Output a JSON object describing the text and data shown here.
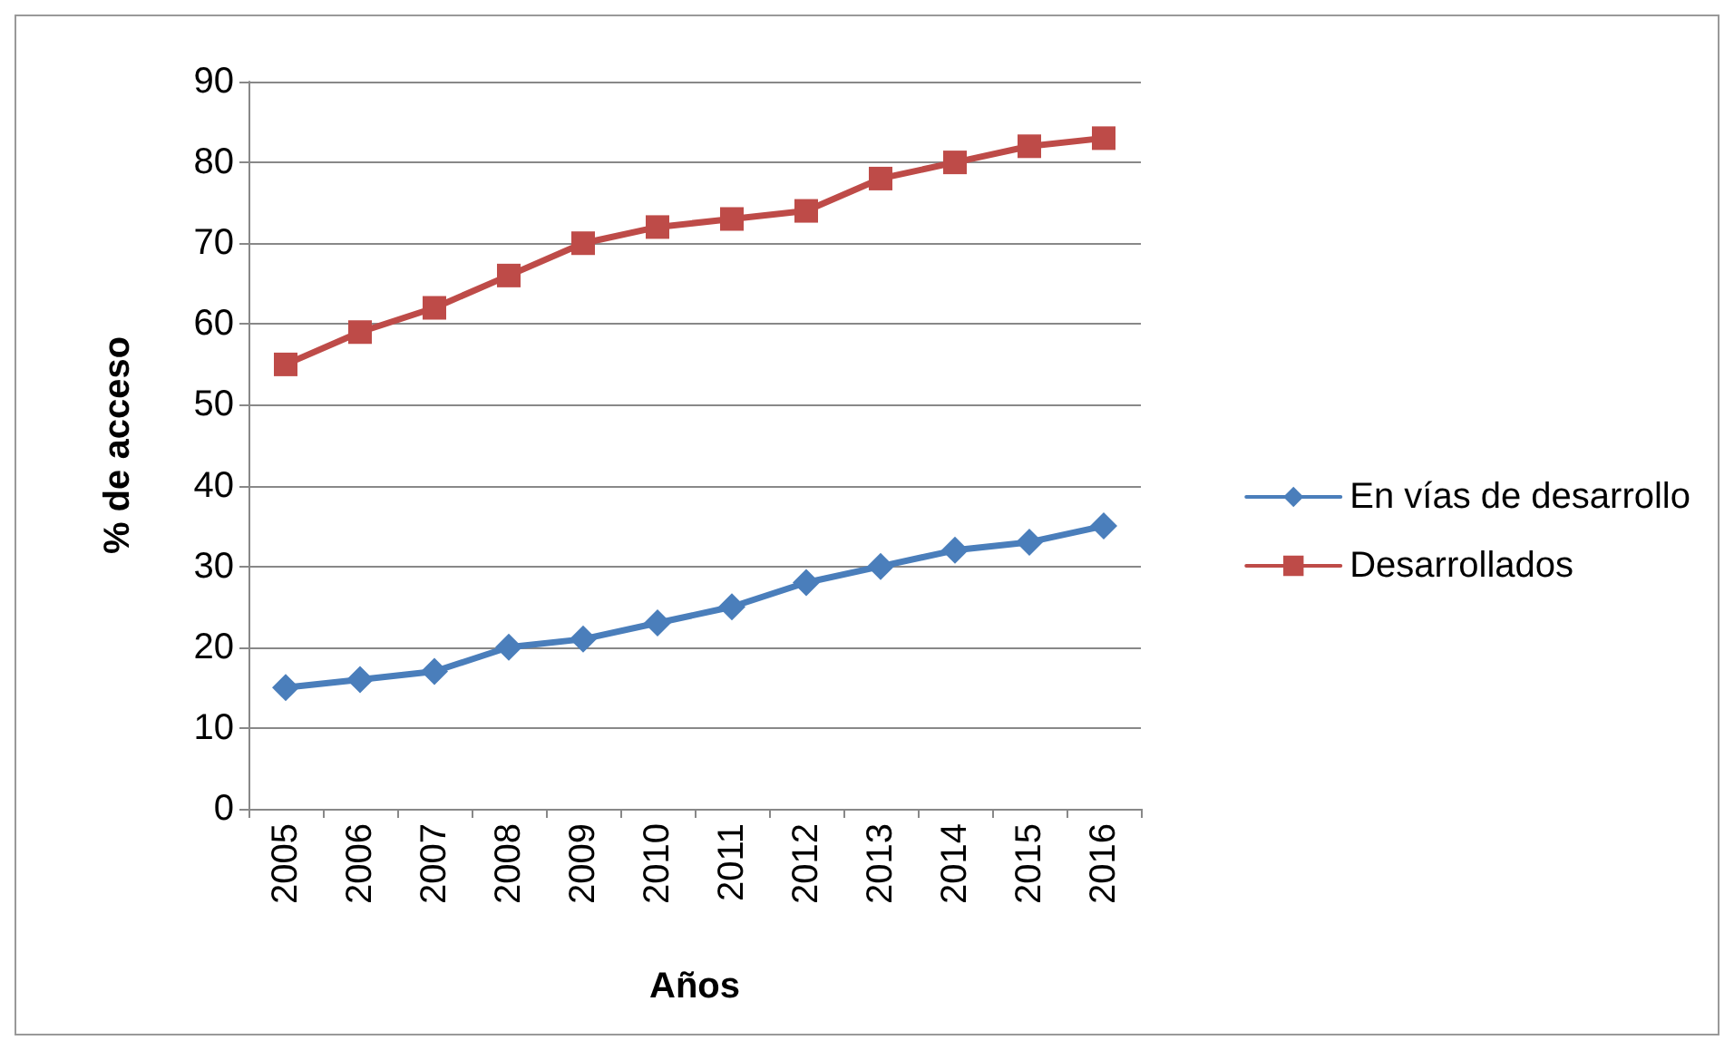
{
  "chart_data": {
    "type": "line",
    "xlabel": "Años",
    "ylabel": "% de acceso",
    "categories": [
      "2005",
      "2006",
      "2007",
      "2008",
      "2009",
      "2010",
      "2011",
      "2012",
      "2013",
      "2014",
      "2015",
      "2016"
    ],
    "series": [
      {
        "name": "En vías de desarrollo",
        "color": "#4a7ebb",
        "marker": "diamond",
        "values": [
          15,
          16,
          17,
          20,
          21,
          23,
          25,
          28,
          30,
          32,
          33,
          35
        ]
      },
      {
        "name": "Desarrollados",
        "color": "#be4b48",
        "marker": "square",
        "values": [
          55,
          59,
          62,
          66,
          70,
          72,
          73,
          74,
          78,
          80,
          82,
          83
        ]
      }
    ],
    "ylim": [
      0,
      90
    ],
    "yticks": [
      0,
      10,
      20,
      30,
      40,
      50,
      60,
      70,
      80,
      90
    ],
    "grid": "y",
    "legend": "right",
    "line_style": "solid"
  }
}
